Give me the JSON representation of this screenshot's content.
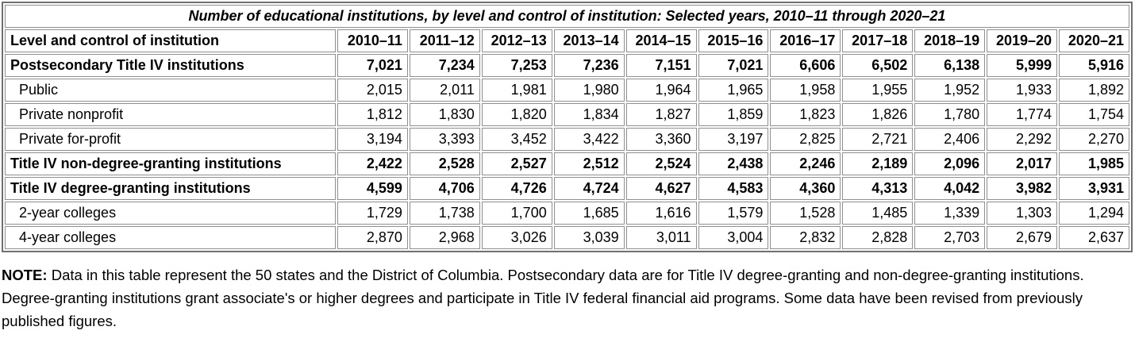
{
  "table": {
    "title": "Number of educational institutions, by level and control of institution: Selected years, 2010–11 through 2020–21",
    "header": {
      "label_column": "Level and control of institution",
      "year_columns": [
        "2010–11",
        "2011–12",
        "2012–13",
        "2013–14",
        "2014–15",
        "2015–16",
        "2016–17",
        "2017–18",
        "2018–19",
        "2019–20",
        "2020–21"
      ]
    },
    "rows": [
      {
        "label": "Postsecondary Title IV institutions",
        "style": "group",
        "values": [
          "7,021",
          "7,234",
          "7,253",
          "7,236",
          "7,151",
          "7,021",
          "6,606",
          "6,502",
          "6,138",
          "5,999",
          "5,916"
        ]
      },
      {
        "label": "Public",
        "style": "sub",
        "values": [
          "2,015",
          "2,011",
          "1,981",
          "1,980",
          "1,964",
          "1,965",
          "1,958",
          "1,955",
          "1,952",
          "1,933",
          "1,892"
        ]
      },
      {
        "label": "Private nonprofit",
        "style": "sub",
        "values": [
          "1,812",
          "1,830",
          "1,820",
          "1,834",
          "1,827",
          "1,859",
          "1,823",
          "1,826",
          "1,780",
          "1,774",
          "1,754"
        ]
      },
      {
        "label": "Private for-profit",
        "style": "sub",
        "values": [
          "3,194",
          "3,393",
          "3,452",
          "3,422",
          "3,360",
          "3,197",
          "2,825",
          "2,721",
          "2,406",
          "2,292",
          "2,270"
        ]
      },
      {
        "label": "Title IV non-degree-granting institutions",
        "style": "group",
        "values": [
          "2,422",
          "2,528",
          "2,527",
          "2,512",
          "2,524",
          "2,438",
          "2,246",
          "2,189",
          "2,096",
          "2,017",
          "1,985"
        ]
      },
      {
        "label": "Title IV degree-granting institutions",
        "style": "group",
        "values": [
          "4,599",
          "4,706",
          "4,726",
          "4,724",
          "4,627",
          "4,583",
          "4,360",
          "4,313",
          "4,042",
          "3,982",
          "3,931"
        ]
      },
      {
        "label": "2-year colleges",
        "style": "sub",
        "values": [
          "1,729",
          "1,738",
          "1,700",
          "1,685",
          "1,616",
          "1,579",
          "1,528",
          "1,485",
          "1,339",
          "1,303",
          "1,294"
        ]
      },
      {
        "label": "4-year colleges",
        "style": "sub",
        "values": [
          "2,870",
          "2,968",
          "3,026",
          "3,039",
          "3,011",
          "3,004",
          "2,832",
          "2,828",
          "2,703",
          "2,679",
          "2,637"
        ]
      }
    ]
  },
  "note": {
    "label": "NOTE:",
    "text": "Data in this table represent the 50 states and the District of Columbia. Postsecondary data are for Title IV degree-granting and non-degree-granting institutions. Degree-granting institutions grant associate's or higher degrees and participate in Title IV federal financial aid programs. Some data have been revised from previously published figures."
  },
  "colors": {
    "border_outer": "#6f6f6f",
    "border_cell": "#8f8f8f",
    "text": "#000000",
    "background": "#ffffff"
  }
}
